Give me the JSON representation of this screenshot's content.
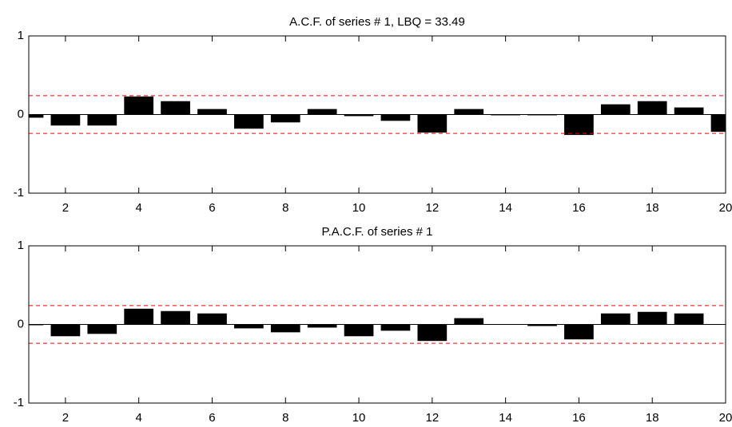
{
  "chart_data": [
    {
      "type": "bar",
      "title": "A.C.F. of series # 1, LBQ =  33.49",
      "x": [
        1,
        2,
        3,
        4,
        5,
        6,
        7,
        8,
        9,
        10,
        11,
        12,
        13,
        14,
        15,
        16,
        17,
        18,
        19,
        20
      ],
      "values": [
        -0.04,
        -0.14,
        -0.14,
        0.23,
        0.17,
        0.07,
        -0.18,
        -0.1,
        0.07,
        -0.02,
        -0.08,
        -0.23,
        0.07,
        -0.01,
        -0.01,
        -0.26,
        0.13,
        0.17,
        0.09,
        -0.22
      ],
      "color": "#000000",
      "bounds": [
        -0.24,
        0.24
      ],
      "bound_color": "#ff0000",
      "xlim": [
        1,
        20
      ],
      "xticks": [
        2,
        4,
        6,
        8,
        10,
        12,
        14,
        16,
        18,
        20
      ],
      "ylim": [
        -1,
        1
      ],
      "yticks": [
        -1,
        0,
        1
      ]
    },
    {
      "type": "bar",
      "title": "P.A.C.F. of series # 1",
      "x": [
        1,
        2,
        3,
        4,
        5,
        6,
        7,
        8,
        9,
        10,
        11,
        12,
        13,
        14,
        15,
        16,
        17,
        18,
        19,
        20
      ],
      "values": [
        -0.01,
        -0.15,
        -0.12,
        0.2,
        0.17,
        0.14,
        -0.05,
        -0.1,
        -0.04,
        -0.15,
        -0.08,
        -0.21,
        0.08,
        0,
        -0.02,
        -0.19,
        0.14,
        0.16,
        0.14,
        0
      ],
      "color": "#000000",
      "bounds": [
        -0.24,
        0.24
      ],
      "bound_color": "#ff0000",
      "xlim": [
        1,
        20
      ],
      "xticks": [
        2,
        4,
        6,
        8,
        10,
        12,
        14,
        16,
        18,
        20
      ],
      "ylim": [
        -1,
        1
      ],
      "yticks": [
        -1,
        0,
        1
      ]
    }
  ]
}
